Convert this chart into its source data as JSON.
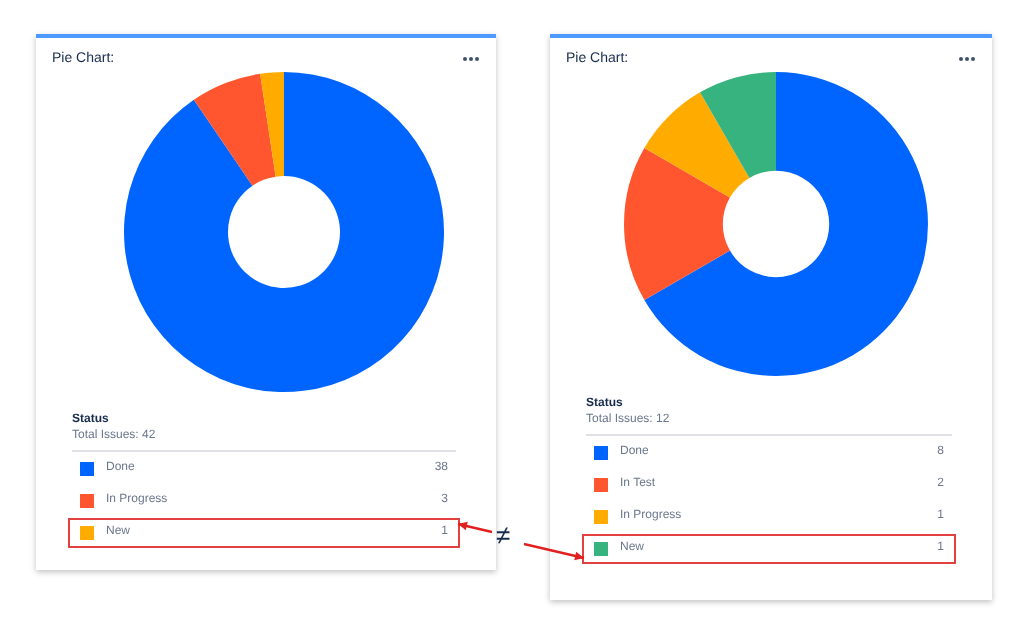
{
  "chart_data": [
    {
      "type": "donut",
      "title": "Pie Chart:",
      "legend_title": "Status",
      "annotations": [
        "Total Issues: 42",
        "≠"
      ],
      "categories": [
        "Done",
        "In Progress",
        "New"
      ],
      "values": [
        38,
        3,
        1
      ],
      "colors": [
        "#0065ff",
        "#ff5630",
        "#ffab00"
      ],
      "legend": "bottom",
      "data_labels": true
    },
    {
      "type": "donut",
      "title": "Pie Chart:",
      "legend_title": "Status",
      "annotations": [
        "Total Issues: 12"
      ],
      "categories": [
        "Done",
        "In Test",
        "In Progress",
        "New"
      ],
      "values": [
        8,
        2,
        1,
        1
      ],
      "colors": [
        "#0065ff",
        "#ff5630",
        "#ffab00",
        "#36b37e"
      ],
      "legend": "bottom",
      "data_labels": true
    }
  ]
}
